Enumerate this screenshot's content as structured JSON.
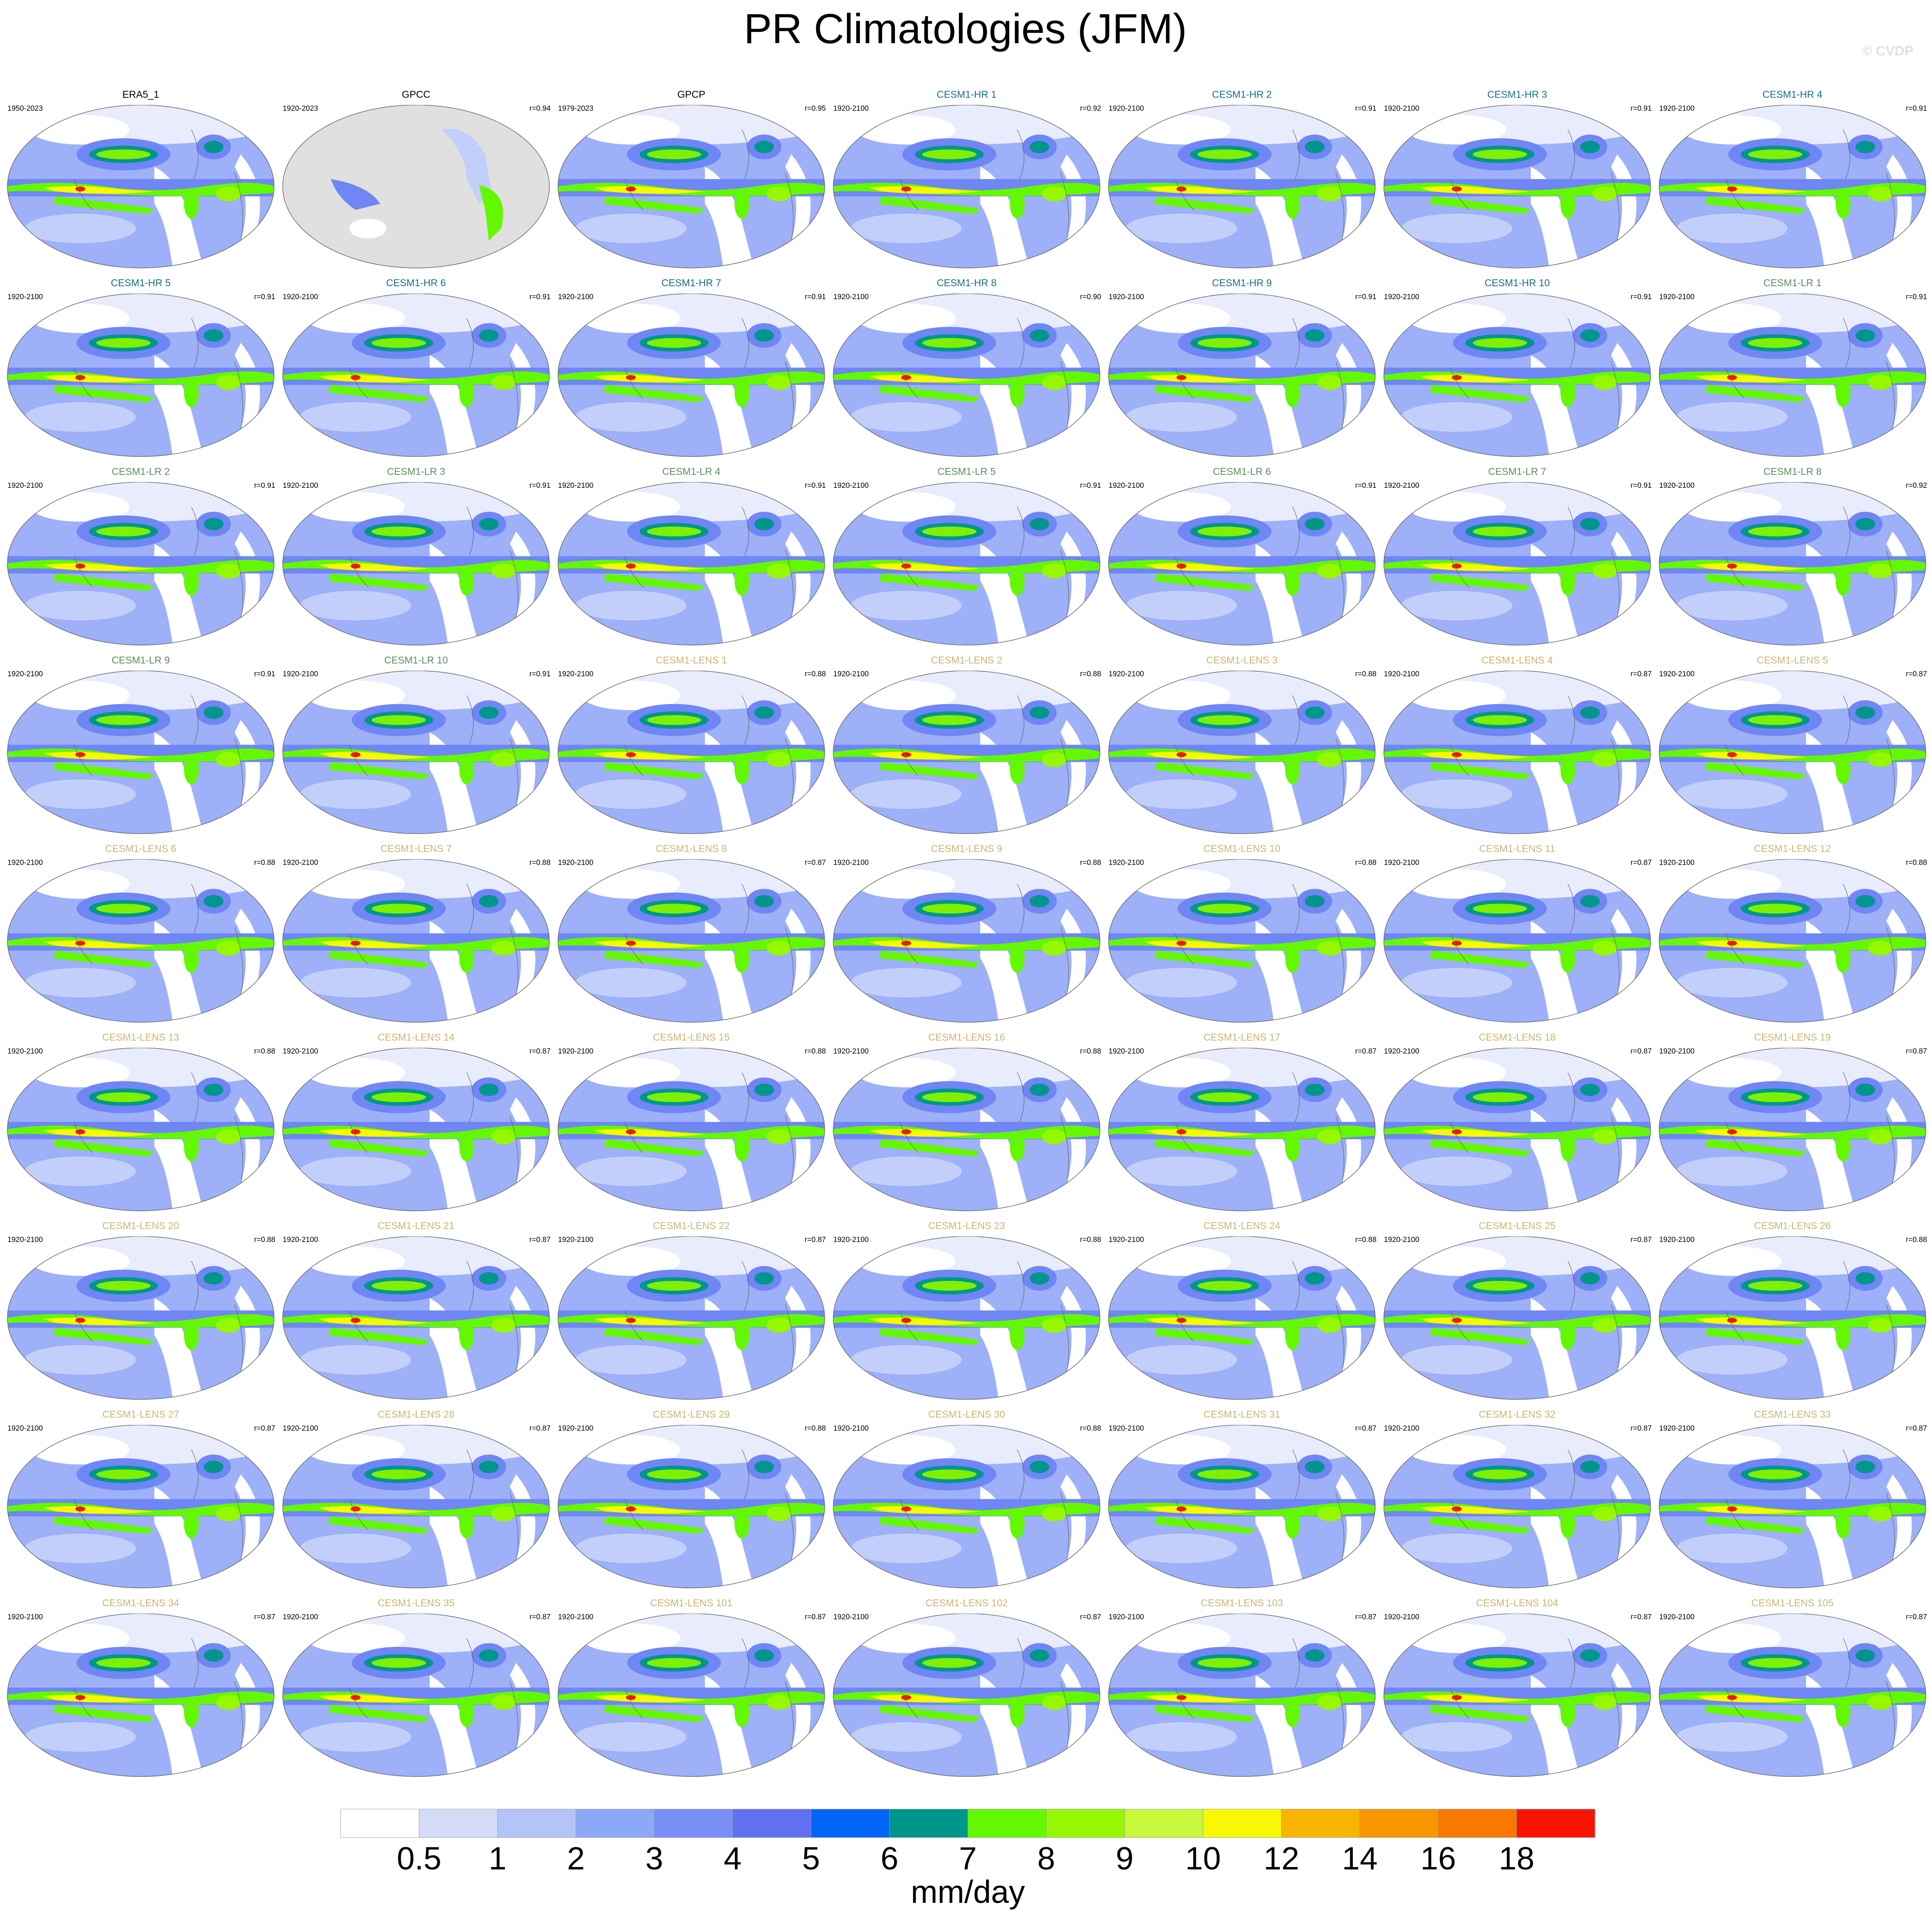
{
  "title": "PR Climatologies (JFM)",
  "watermark": "© CVDP",
  "panels": [
    {
      "title": "ERA5_1",
      "period": "1950-2023",
      "color": "#000000"
    },
    {
      "title": "GPCC",
      "period": "1920-2023",
      "r": "r=0.94",
      "color": "#000000",
      "land_only": true
    },
    {
      "title": "GPCP",
      "period": "1979-2023",
      "r": "r=0.95",
      "color": "#000000"
    },
    {
      "title": "CESM1-HR 1",
      "period": "1920-2100",
      "r": "r=0.92",
      "color": "#1a6f80"
    },
    {
      "title": "CESM1-HR 2",
      "period": "1920-2100",
      "r": "r=0.91",
      "color": "#1a6f80"
    },
    {
      "title": "CESM1-HR 3",
      "period": "1920-2100",
      "r": "r=0.91",
      "color": "#1a6f80"
    },
    {
      "title": "CESM1-HR 4",
      "period": "1920-2100",
      "r": "r=0.91",
      "color": "#1a6f80"
    },
    {
      "title": "CESM1-HR 5",
      "period": "1920-2100",
      "r": "r=0.91",
      "color": "#1a6f80"
    },
    {
      "title": "CESM1-HR 6",
      "period": "1920-2100",
      "r": "r=0.91",
      "color": "#1a6f80"
    },
    {
      "title": "CESM1-HR 7",
      "period": "1920-2100",
      "r": "r=0.91",
      "color": "#1a6f80"
    },
    {
      "title": "CESM1-HR 8",
      "period": "1920-2100",
      "r": "r=0.90",
      "color": "#1a6f80"
    },
    {
      "title": "CESM1-HR 9",
      "period": "1920-2100",
      "r": "r=0.91",
      "color": "#1a6f80"
    },
    {
      "title": "CESM1-HR 10",
      "period": "1920-2100",
      "r": "r=0.91",
      "color": "#1a6f80"
    },
    {
      "title": "CESM1-LR 1",
      "period": "1920-2100",
      "r": "r=0.91",
      "color": "#5f8c5f"
    },
    {
      "title": "CESM1-LR 2",
      "period": "1920-2100",
      "r": "r=0.91",
      "color": "#5f8c5f"
    },
    {
      "title": "CESM1-LR 3",
      "period": "1920-2100",
      "r": "r=0.91",
      "color": "#5f8c5f"
    },
    {
      "title": "CESM1-LR 4",
      "period": "1920-2100",
      "r": "r=0.91",
      "color": "#5f8c5f"
    },
    {
      "title": "CESM1-LR 5",
      "period": "1920-2100",
      "r": "r=0.91",
      "color": "#5f8c5f"
    },
    {
      "title": "CESM1-LR 6",
      "period": "1920-2100",
      "r": "r=0.91",
      "color": "#5f8c5f"
    },
    {
      "title": "CESM1-LR 7",
      "period": "1920-2100",
      "r": "r=0.91",
      "color": "#5f8c5f"
    },
    {
      "title": "CESM1-LR 8",
      "period": "1920-2100",
      "r": "r=0.92",
      "color": "#5f8c5f"
    },
    {
      "title": "CESM1-LR 9",
      "period": "1920-2100",
      "r": "r=0.91",
      "color": "#5f8c5f"
    },
    {
      "title": "CESM1-LR 10",
      "period": "1920-2100",
      "r": "r=0.91",
      "color": "#5f8c5f"
    },
    {
      "title": "CESM1-LENS 1",
      "period": "1920-2100",
      "r": "r=0.88",
      "color": "#c9b673"
    },
    {
      "title": "CESM1-LENS 2",
      "period": "1920-2100",
      "r": "r=0.88",
      "color": "#c9b673"
    },
    {
      "title": "CESM1-LENS 3",
      "period": "1920-2100",
      "r": "r=0.88",
      "color": "#c9b673"
    },
    {
      "title": "CESM1-LENS 4",
      "period": "1920-2100",
      "r": "r=0.87",
      "color": "#c9b673"
    },
    {
      "title": "CESM1-LENS 5",
      "period": "1920-2100",
      "r": "r=0.87",
      "color": "#c9b673"
    },
    {
      "title": "CESM1-LENS 6",
      "period": "1920-2100",
      "r": "r=0.88",
      "color": "#c9b673"
    },
    {
      "title": "CESM1-LENS 7",
      "period": "1920-2100",
      "r": "r=0.88",
      "color": "#c9b673"
    },
    {
      "title": "CESM1-LENS 8",
      "period": "1920-2100",
      "r": "r=0.87",
      "color": "#c9b673"
    },
    {
      "title": "CESM1-LENS 9",
      "period": "1920-2100",
      "r": "r=0.88",
      "color": "#c9b673"
    },
    {
      "title": "CESM1-LENS 10",
      "period": "1920-2100",
      "r": "r=0.88",
      "color": "#c9b673"
    },
    {
      "title": "CESM1-LENS 11",
      "period": "1920-2100",
      "r": "r=0.87",
      "color": "#c9b673"
    },
    {
      "title": "CESM1-LENS 12",
      "period": "1920-2100",
      "r": "r=0.88",
      "color": "#c9b673"
    },
    {
      "title": "CESM1-LENS 13",
      "period": "1920-2100",
      "r": "r=0.88",
      "color": "#c9b673"
    },
    {
      "title": "CESM1-LENS 14",
      "period": "1920-2100",
      "r": "r=0.87",
      "color": "#c9b673"
    },
    {
      "title": "CESM1-LENS 15",
      "period": "1920-2100",
      "r": "r=0.88",
      "color": "#c9b673"
    },
    {
      "title": "CESM1-LENS 16",
      "period": "1920-2100",
      "r": "r=0.88",
      "color": "#c9b673"
    },
    {
      "title": "CESM1-LENS 17",
      "period": "1920-2100",
      "r": "r=0.87",
      "color": "#c9b673"
    },
    {
      "title": "CESM1-LENS 18",
      "period": "1920-2100",
      "r": "r=0.87",
      "color": "#c9b673"
    },
    {
      "title": "CESM1-LENS 19",
      "period": "1920-2100",
      "r": "r=0.87",
      "color": "#c9b673"
    },
    {
      "title": "CESM1-LENS 20",
      "period": "1920-2100",
      "r": "r=0.88",
      "color": "#c9b673"
    },
    {
      "title": "CESM1-LENS 21",
      "period": "1920-2100",
      "r": "r=0.87",
      "color": "#c9b673"
    },
    {
      "title": "CESM1-LENS 22",
      "period": "1920-2100",
      "r": "r=0.87",
      "color": "#c9b673"
    },
    {
      "title": "CESM1-LENS 23",
      "period": "1920-2100",
      "r": "r=0.88",
      "color": "#c9b673"
    },
    {
      "title": "CESM1-LENS 24",
      "period": "1920-2100",
      "r": "r=0.88",
      "color": "#c9b673"
    },
    {
      "title": "CESM1-LENS 25",
      "period": "1920-2100",
      "r": "r=0.87",
      "color": "#c9b673"
    },
    {
      "title": "CESM1-LENS 26",
      "period": "1920-2100",
      "r": "r=0.88",
      "color": "#c9b673"
    },
    {
      "title": "CESM1-LENS 27",
      "period": "1920-2100",
      "r": "r=0.87",
      "color": "#c9b673"
    },
    {
      "title": "CESM1-LENS 28",
      "period": "1920-2100",
      "r": "r=0.87",
      "color": "#c9b673"
    },
    {
      "title": "CESM1-LENS 29",
      "period": "1920-2100",
      "r": "r=0.88",
      "color": "#c9b673"
    },
    {
      "title": "CESM1-LENS 30",
      "period": "1920-2100",
      "r": "r=0.88",
      "color": "#c9b673"
    },
    {
      "title": "CESM1-LENS 31",
      "period": "1920-2100",
      "r": "r=0.87",
      "color": "#c9b673"
    },
    {
      "title": "CESM1-LENS 32",
      "period": "1920-2100",
      "r": "r=0.87",
      "color": "#c9b673"
    },
    {
      "title": "CESM1-LENS 33",
      "period": "1920-2100",
      "r": "r=0.87",
      "color": "#c9b673"
    },
    {
      "title": "CESM1-LENS 34",
      "period": "1920-2100",
      "r": "r=0.87",
      "color": "#c9b673"
    },
    {
      "title": "CESM1-LENS 35",
      "period": "1920-2100",
      "r": "r=0.87",
      "color": "#c9b673"
    },
    {
      "title": "CESM1-LENS 101",
      "period": "1920-2100",
      "r": "r=0.87",
      "color": "#c9b673"
    },
    {
      "title": "CESM1-LENS 102",
      "period": "1920-2100",
      "r": "r=0.87",
      "color": "#c9b673"
    },
    {
      "title": "CESM1-LENS 103",
      "period": "1920-2100",
      "r": "r=0.87",
      "color": "#c9b673"
    },
    {
      "title": "CESM1-LENS 104",
      "period": "1920-2100",
      "r": "r=0.87",
      "color": "#c9b673"
    },
    {
      "title": "CESM1-LENS 105",
      "period": "1920-2100",
      "r": "r=0.87",
      "color": "#c9b673"
    }
  ],
  "colorbar": {
    "levels": [
      0.5,
      1,
      2,
      3,
      4,
      5,
      6,
      7,
      8,
      9,
      10,
      12,
      14,
      16,
      18
    ],
    "colors": [
      "#ffffff",
      "#d4dcf8",
      "#b4c4f8",
      "#8ca8f8",
      "#7890f8",
      "#6070f0",
      "#0064f8",
      "#00968c",
      "#64f800",
      "#96f800",
      "#c8f83c",
      "#f8f800",
      "#f8b400",
      "#f89600",
      "#f87800",
      "#f81400"
    ],
    "label": "mm/day"
  }
}
